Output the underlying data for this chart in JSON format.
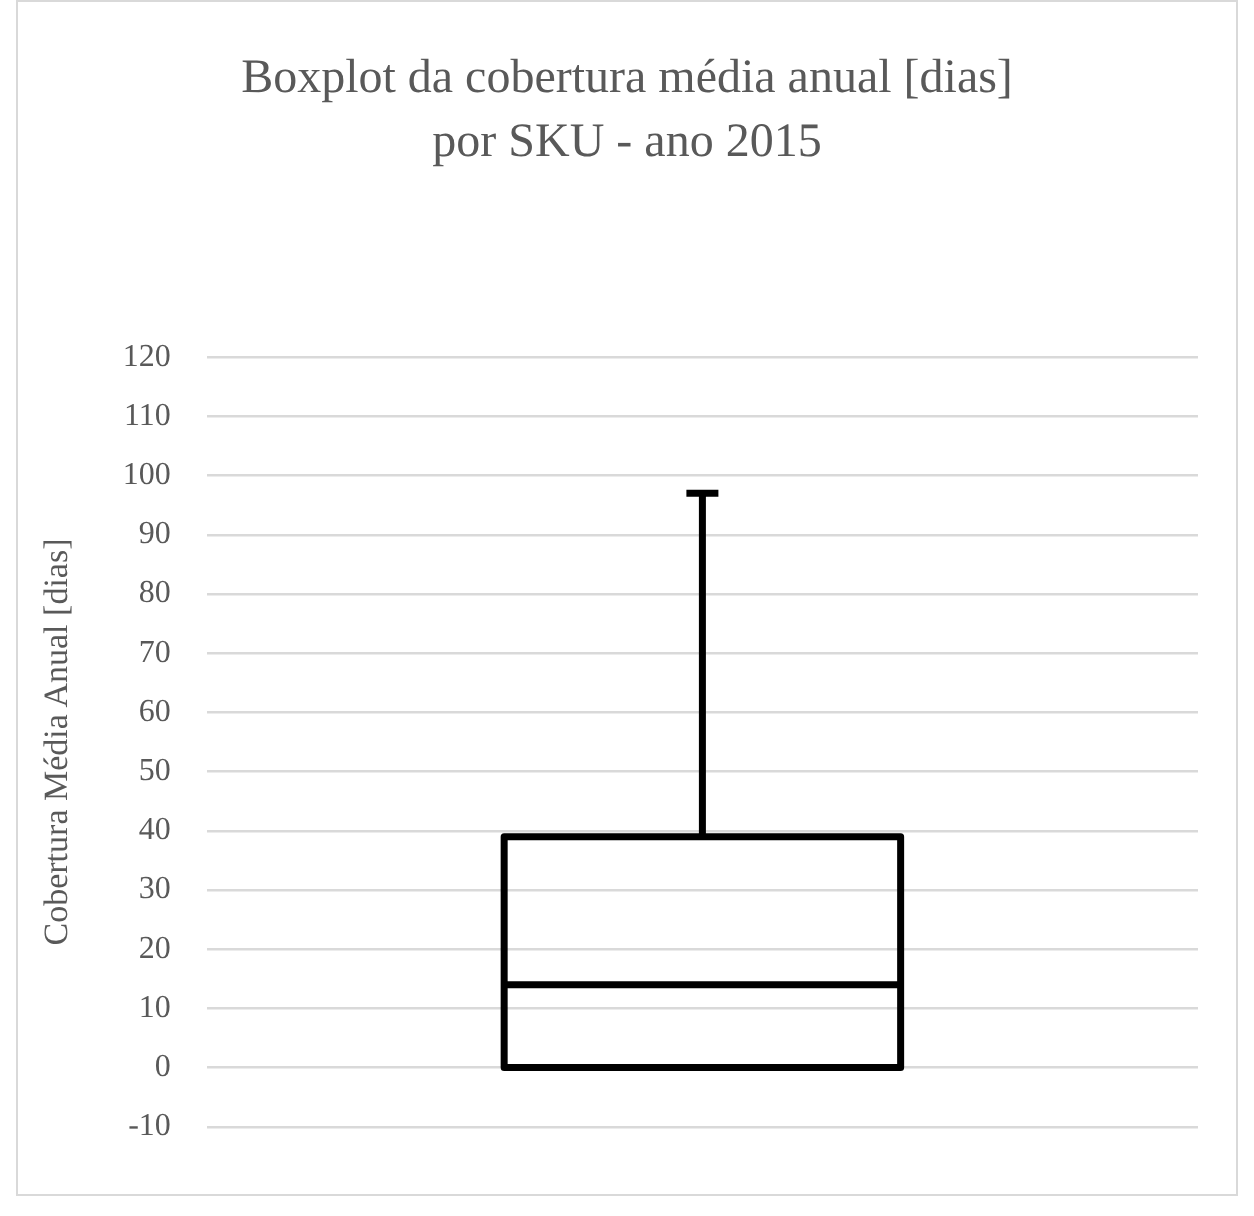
{
  "chart_data": {
    "type": "box",
    "title": "Boxplot da cobertura média anual [dias] por SKU - ano 2015",
    "ylabel": "Cobertura Média Anual [dias]",
    "categories": [
      null
    ],
    "boxes": [
      {
        "low": 0,
        "q1": 0,
        "median": 14,
        "q3": 39,
        "high": 97
      }
    ],
    "color": "#000000",
    "ylim": [
      -10,
      120
    ],
    "yticks": [
      -10,
      0,
      10,
      20,
      30,
      40,
      50,
      60,
      70,
      80,
      90,
      100,
      110,
      120
    ],
    "grid": "y",
    "tick_labels": "y"
  }
}
